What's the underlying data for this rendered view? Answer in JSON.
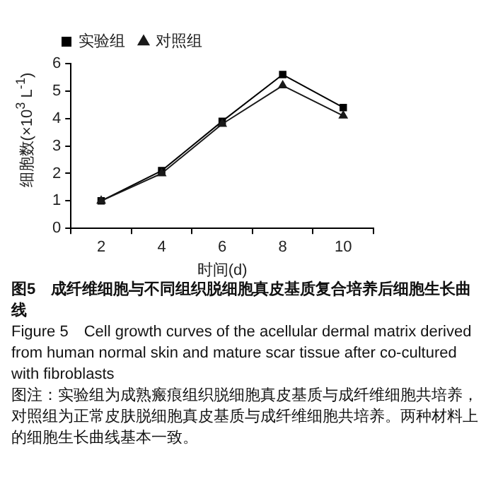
{
  "chart_data": {
    "type": "line",
    "title": "图5　成纤维细胞与不同组织脱细胞真皮基质复合培养后细胞生长曲线",
    "xlabel": "时间(d)",
    "ylabel": "细胞数(×10$^{3}$ L$^{-1}$)",
    "categories": [
      "2",
      "4",
      "6",
      "8",
      "10"
    ],
    "series": [
      {
        "name": "实验组",
        "color": "#000000",
        "marker": "square",
        "values": [
          1.0,
          2.1,
          3.9,
          5.6,
          4.4
        ]
      },
      {
        "name": "对照组",
        "color": "#1a1a1a",
        "marker": "triangle",
        "values": [
          1.0,
          2.0,
          3.8,
          5.2,
          4.1
        ]
      }
    ],
    "ylim": [
      0,
      6
    ],
    "yticks": [
      0,
      1,
      2,
      3,
      4,
      5,
      6
    ],
    "grid": false,
    "legend": "top left",
    "line_style": "solid",
    "annotations": [
      "Figure 5　Cell growth curves of the acellular dermal matrix derived from human normal skin and mature scar tissue after co-cultured with fibroblasts",
      "图注：实验组为成熟瘢痕组织脱细胞真皮基质与成纤维细胞共培养，对照组为正常皮肤脱细胞真皮基质与成纤维细胞共培养。两种材料上的细胞生长曲线基本一致。"
    ]
  }
}
